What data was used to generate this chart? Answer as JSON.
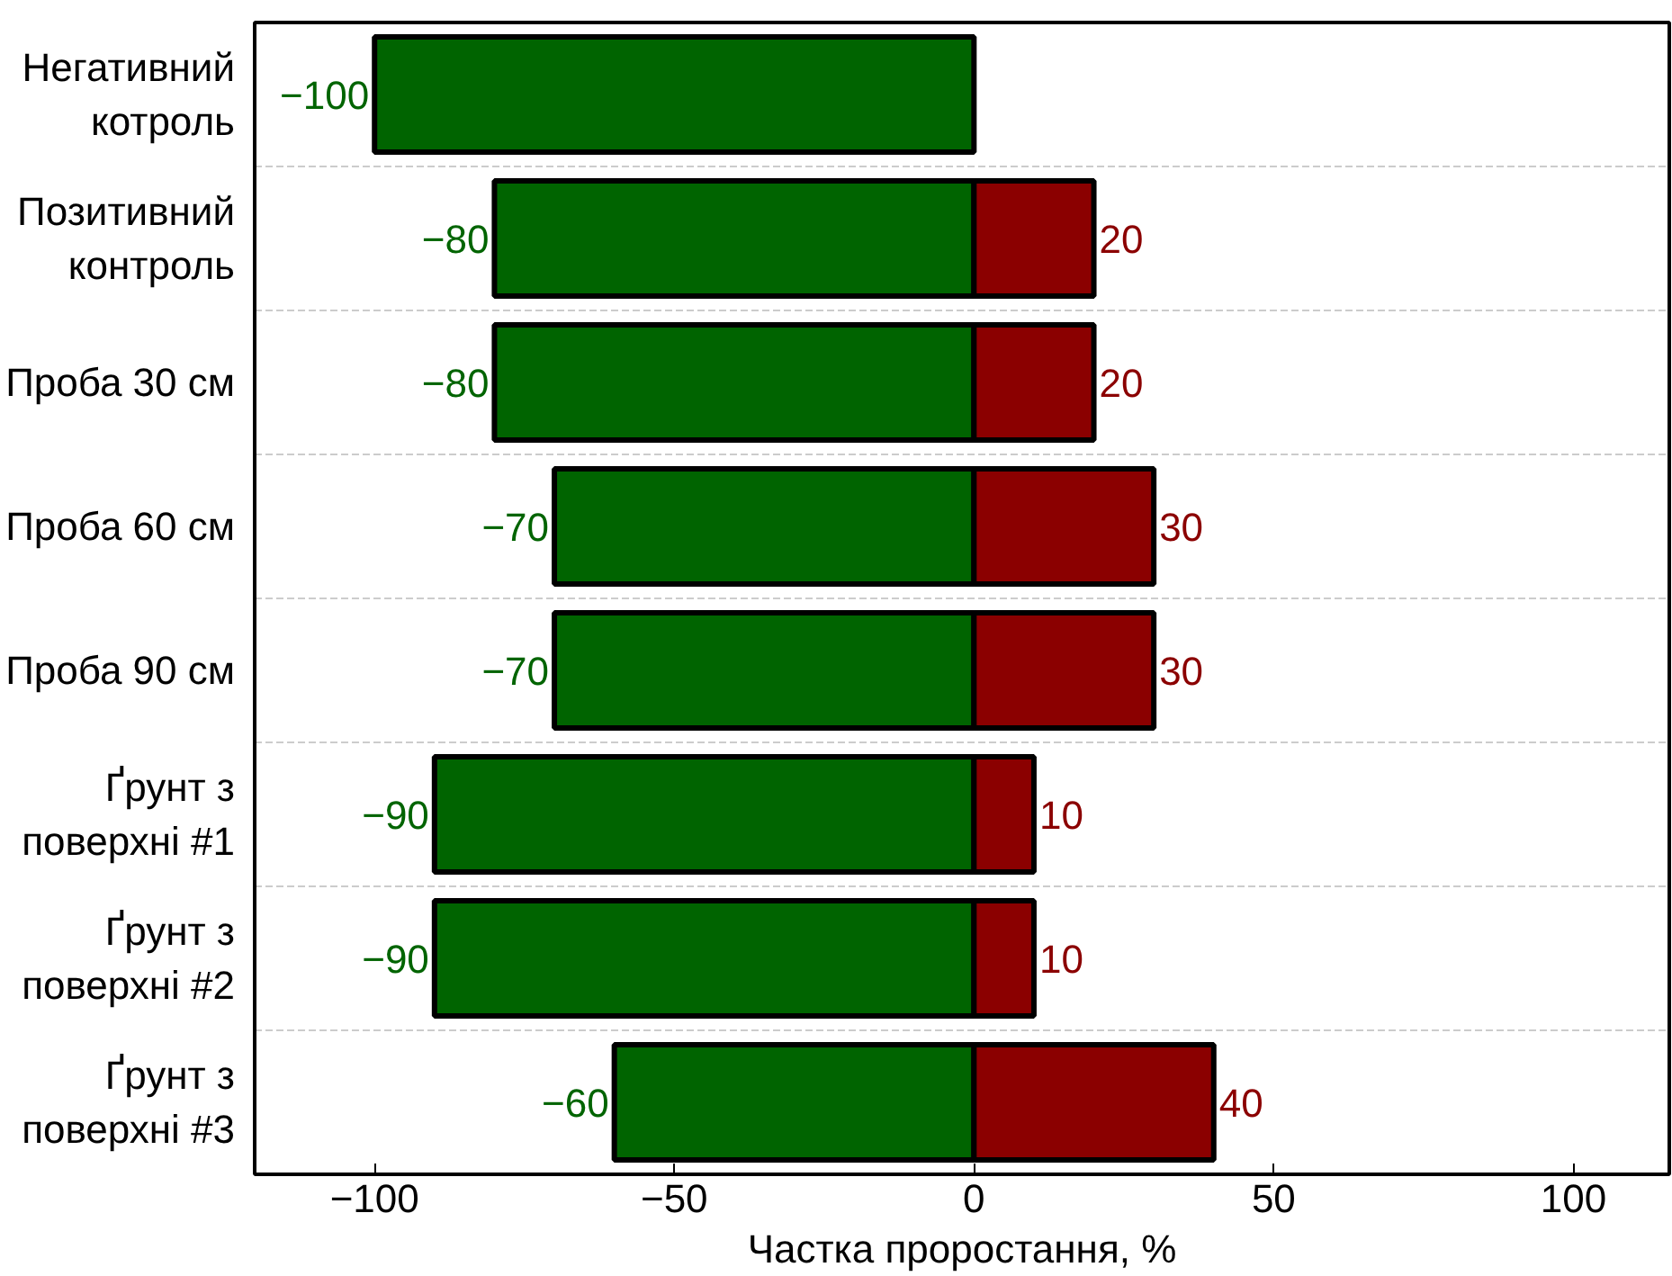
{
  "chart_data": {
    "type": "bar",
    "orientation": "horizontal",
    "stacked": true,
    "categories": [
      "Негативний котроль",
      "Позитивний контроль",
      "Проба 30 см",
      "Проба 60 см",
      "Проба 90 см",
      "Ґрунт з поверхні #1",
      "Ґрунт з поверхні #2",
      "Ґрунт з поверхні #3"
    ],
    "series": [
      {
        "color": "#006400",
        "values": [
          -100,
          -80,
          -80,
          -70,
          -70,
          -90,
          -90,
          -60
        ],
        "value_labels": [
          "−100",
          "−80",
          "−80",
          "−70",
          "−70",
          "−90",
          "−90",
          "−60"
        ]
      },
      {
        "color": "#8b0000",
        "values": [
          null,
          20,
          20,
          30,
          30,
          10,
          10,
          40
        ],
        "value_labels": [
          null,
          "20",
          "20",
          "30",
          "30",
          "10",
          "10",
          "40"
        ]
      }
    ],
    "xlabel": "Частка проростання, %",
    "xlim": [
      -120,
      116
    ],
    "xticks": [
      {
        "value": -100,
        "label": "−100"
      },
      {
        "value": -50,
        "label": "−50"
      },
      0,
      50,
      100
    ],
    "grid": "y"
  }
}
